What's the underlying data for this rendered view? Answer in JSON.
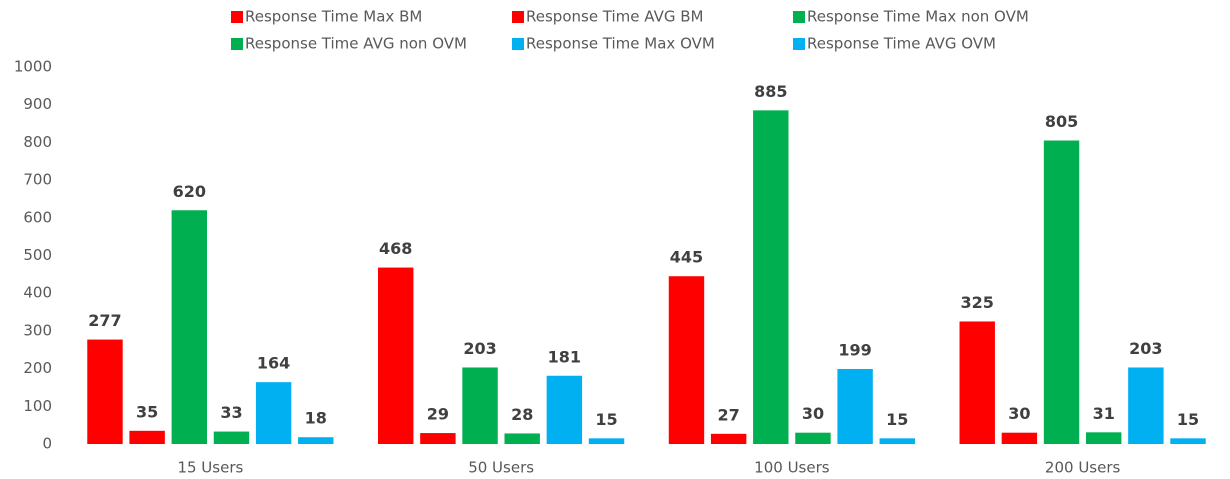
{
  "chart_data": {
    "type": "bar",
    "categories": [
      "15 Users",
      "50 Users",
      "100 Users",
      "200 Users"
    ],
    "series": [
      {
        "name": "Response Time Max BM",
        "color": "#ff0000",
        "values": [
          277,
          468,
          445,
          325
        ]
      },
      {
        "name": "Response Time AVG BM",
        "color": "#ff0000",
        "values": [
          35,
          29,
          27,
          30
        ]
      },
      {
        "name": "Response Time Max non OVM",
        "color": "#00b050",
        "values": [
          620,
          203,
          885,
          805
        ]
      },
      {
        "name": "Response Time AVG non OVM",
        "color": "#00b050",
        "values": [
          33,
          28,
          30,
          31
        ]
      },
      {
        "name": "Response Time Max OVM",
        "color": "#00b0f0",
        "values": [
          164,
          181,
          199,
          203
        ]
      },
      {
        "name": "Response Time AVG OVM",
        "color": "#00b0f0",
        "values": [
          18,
          15,
          15,
          15
        ]
      }
    ],
    "ylim": [
      0,
      1000
    ],
    "yticks": [
      0,
      100,
      200,
      300,
      400,
      500,
      600,
      700,
      800,
      900,
      1000
    ],
    "grid": false,
    "legend": "top"
  }
}
